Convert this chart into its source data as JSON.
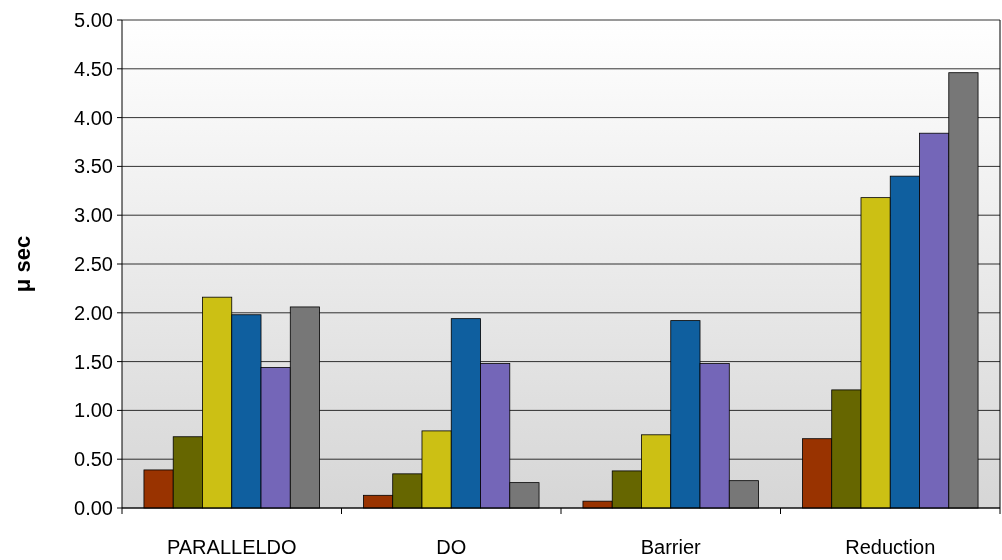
{
  "chart_data": {
    "type": "bar",
    "ylabel": "μ sec",
    "categories": [
      "PARALLELDO",
      "DO",
      "Barrier",
      "Reduction"
    ],
    "series": [
      {
        "color": "#993300",
        "values": [
          0.39,
          0.13,
          0.07,
          0.71
        ]
      },
      {
        "color": "#666600",
        "values": [
          0.73,
          0.35,
          0.38,
          1.21
        ]
      },
      {
        "color": "#ccc014",
        "values": [
          2.16,
          0.79,
          0.75,
          3.18
        ]
      },
      {
        "color": "#0f5f9f",
        "values": [
          1.98,
          1.94,
          1.92,
          3.4
        ]
      },
      {
        "color": "#7466b8",
        "values": [
          1.44,
          1.48,
          1.48,
          3.84
        ]
      },
      {
        "color": "#777777",
        "values": [
          2.06,
          0.26,
          0.28,
          4.46
        ]
      }
    ],
    "ylim": [
      0,
      5
    ],
    "yticks": [
      {
        "value": 0,
        "label": "0.00"
      },
      {
        "value": 0.5,
        "label": "0.50"
      },
      {
        "value": 1,
        "label": "1.00"
      },
      {
        "value": 1.5,
        "label": "1.50"
      },
      {
        "value": 2,
        "label": "2.00"
      },
      {
        "value": 2.5,
        "label": "2.50"
      },
      {
        "value": 3,
        "label": "3.00"
      },
      {
        "value": 3.5,
        "label": "3.50"
      },
      {
        "value": 4,
        "label": "4.00"
      },
      {
        "value": 4.5,
        "label": "4.50"
      },
      {
        "value": 5,
        "label": "5.00"
      }
    ],
    "grid": "y"
  }
}
